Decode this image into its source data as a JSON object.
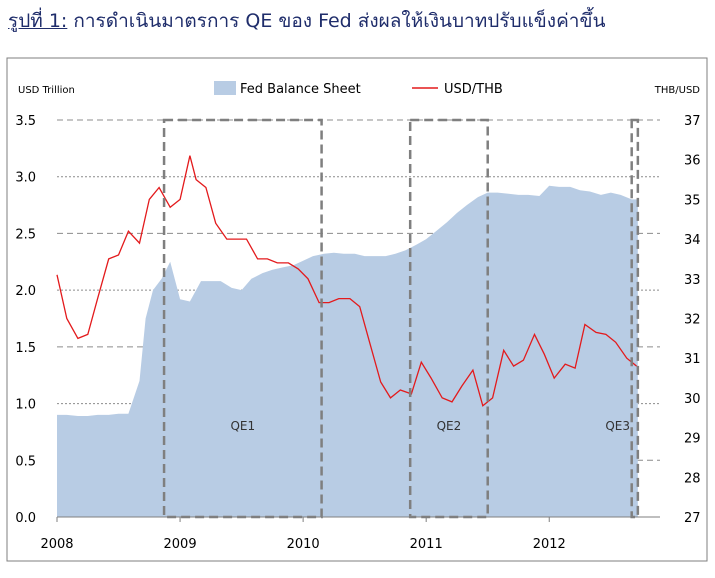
{
  "title_prefix": "รูปที่ 1:",
  "title_text": " การดำเนินมาตรการ QE ของ Fed ส่งผลให้เงินบาทปรับแข็งค่าขึ้น",
  "chart_data": {
    "type": "area",
    "left_axis_label": "USD Trillion",
    "right_axis_label": "THB/USD",
    "legend": {
      "placement": "top-center",
      "entries": [
        "Fed Balance Sheet",
        "USD/THB"
      ]
    },
    "x_ticks": [
      "2008",
      "2009",
      "2010",
      "2011",
      "2012"
    ],
    "x_range": [
      2008.0,
      2012.9
    ],
    "left_ylim": [
      0.0,
      3.5
    ],
    "left_ticks": [
      "0.0",
      "0.5",
      "1.0",
      "1.5",
      "2.0",
      "2.5",
      "3.0",
      "3.5"
    ],
    "right_ylim": [
      27,
      37
    ],
    "right_ticks": [
      "27",
      "28",
      "29",
      "30",
      "31",
      "32",
      "33",
      "34",
      "35",
      "36",
      "37"
    ],
    "colors": {
      "area": "#b8cce4",
      "line": "#e31a1c",
      "qe_box": "#7f7f7f",
      "frame": "#7f7f7f"
    },
    "series": [
      {
        "name": "Fed Balance Sheet",
        "axis": "left",
        "x": [
          2008.0,
          2008.08,
          2008.17,
          2008.25,
          2008.33,
          2008.42,
          2008.5,
          2008.58,
          2008.67,
          2008.72,
          2008.78,
          2008.85,
          2008.92,
          2009.0,
          2009.08,
          2009.17,
          2009.25,
          2009.33,
          2009.42,
          2009.5,
          2009.58,
          2009.67,
          2009.75,
          2009.83,
          2009.92,
          2010.0,
          2010.08,
          2010.17,
          2010.25,
          2010.33,
          2010.42,
          2010.5,
          2010.58,
          2010.67,
          2010.75,
          2010.83,
          2010.92,
          2011.0,
          2011.08,
          2011.17,
          2011.25,
          2011.33,
          2011.42,
          2011.5,
          2011.58,
          2011.67,
          2011.75,
          2011.83,
          2011.92,
          2012.0,
          2012.08,
          2012.17,
          2012.25,
          2012.33,
          2012.42,
          2012.5,
          2012.58,
          2012.67,
          2012.72
        ],
        "values": [
          0.9,
          0.9,
          0.89,
          0.89,
          0.9,
          0.9,
          0.91,
          0.91,
          1.2,
          1.75,
          2.0,
          2.1,
          2.25,
          1.92,
          1.9,
          2.08,
          2.08,
          2.08,
          2.02,
          2.0,
          2.1,
          2.15,
          2.18,
          2.2,
          2.22,
          2.26,
          2.3,
          2.32,
          2.33,
          2.32,
          2.32,
          2.3,
          2.3,
          2.3,
          2.32,
          2.35,
          2.4,
          2.45,
          2.52,
          2.6,
          2.68,
          2.75,
          2.82,
          2.86,
          2.86,
          2.85,
          2.84,
          2.84,
          2.83,
          2.92,
          2.91,
          2.91,
          2.88,
          2.87,
          2.84,
          2.86,
          2.84,
          2.8,
          2.8
        ]
      },
      {
        "name": "USD/THB",
        "axis": "right",
        "x": [
          2008.0,
          2008.08,
          2008.17,
          2008.25,
          2008.33,
          2008.42,
          2008.5,
          2008.58,
          2008.67,
          2008.75,
          2008.83,
          2008.92,
          2009.0,
          2009.08,
          2009.13,
          2009.21,
          2009.29,
          2009.38,
          2009.46,
          2009.54,
          2009.63,
          2009.71,
          2009.79,
          2009.88,
          2009.96,
          2010.04,
          2010.13,
          2010.21,
          2010.29,
          2010.38,
          2010.46,
          2010.54,
          2010.63,
          2010.71,
          2010.79,
          2010.88,
          2010.96,
          2011.04,
          2011.13,
          2011.21,
          2011.29,
          2011.38,
          2011.46,
          2011.54,
          2011.63,
          2011.71,
          2011.79,
          2011.88,
          2011.96,
          2012.04,
          2012.13,
          2012.21,
          2012.29,
          2012.38,
          2012.46,
          2012.54,
          2012.63,
          2012.71
        ],
        "values": [
          33.1,
          32.0,
          31.5,
          31.6,
          32.5,
          33.5,
          33.6,
          34.2,
          33.9,
          35.0,
          35.3,
          34.8,
          35.0,
          36.1,
          35.5,
          35.3,
          34.4,
          34.0,
          34.0,
          34.0,
          33.5,
          33.5,
          33.4,
          33.4,
          33.25,
          33.0,
          32.4,
          32.4,
          32.5,
          32.5,
          32.3,
          31.4,
          30.4,
          30.0,
          30.2,
          30.1,
          30.9,
          30.5,
          30.0,
          29.9,
          30.3,
          30.7,
          29.8,
          30.0,
          31.2,
          30.8,
          30.95,
          31.6,
          31.1,
          30.5,
          30.85,
          30.75,
          31.85,
          31.65,
          31.6,
          31.4,
          31.0,
          30.8
        ]
      }
    ],
    "qe_periods": [
      {
        "label": "QE1",
        "start": 2008.87,
        "end": 2010.15
      },
      {
        "label": "QE2",
        "start": 2010.87,
        "end": 2011.5
      },
      {
        "label": "QE3",
        "start": 2012.67,
        "end": 2012.72
      }
    ]
  }
}
